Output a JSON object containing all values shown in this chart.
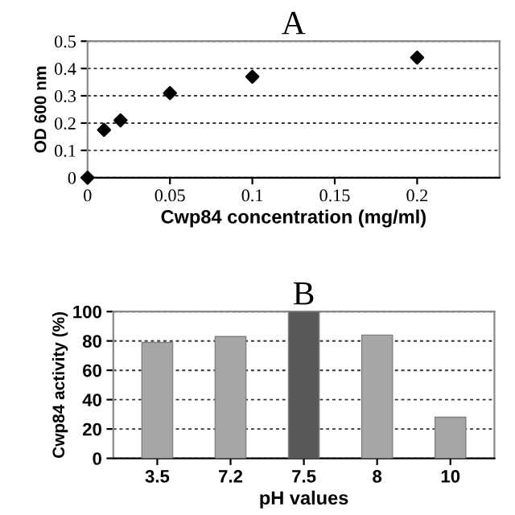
{
  "chart_data": [
    {
      "type": "scatter",
      "title": "A",
      "xlabel": "Cwp84 concentration (mg/ml)",
      "ylabel": "OD 600 nm",
      "x": [
        0,
        0.01,
        0.02,
        0.05,
        0.1,
        0.2
      ],
      "values": [
        0,
        0.175,
        0.21,
        0.31,
        0.37,
        0.44
      ],
      "color": "#000000",
      "marker": "diamond",
      "xlim": [
        0,
        0.25
      ],
      "xticks": [
        0,
        0.05,
        0.1,
        0.15,
        0.2
      ],
      "ylim": [
        0,
        0.5
      ],
      "yticks": [
        0,
        0.1,
        0.2,
        0.3,
        0.4,
        0.5
      ],
      "grid": "y"
    },
    {
      "type": "bar",
      "title": "B",
      "xlabel": "pH values",
      "ylabel": "Cwp84 activity (%)",
      "categories": [
        "3.5",
        "7.2",
        "7.5",
        "8",
        "10"
      ],
      "values": [
        79,
        83,
        100,
        84,
        28
      ],
      "colors": [
        "#a6a6a6",
        "#a6a6a6",
        "#595959",
        "#a6a6a6",
        "#a6a6a6"
      ],
      "ylim": [
        0,
        100
      ],
      "yticks": [
        0,
        20,
        40,
        60,
        80,
        100
      ],
      "grid": "y"
    }
  ]
}
